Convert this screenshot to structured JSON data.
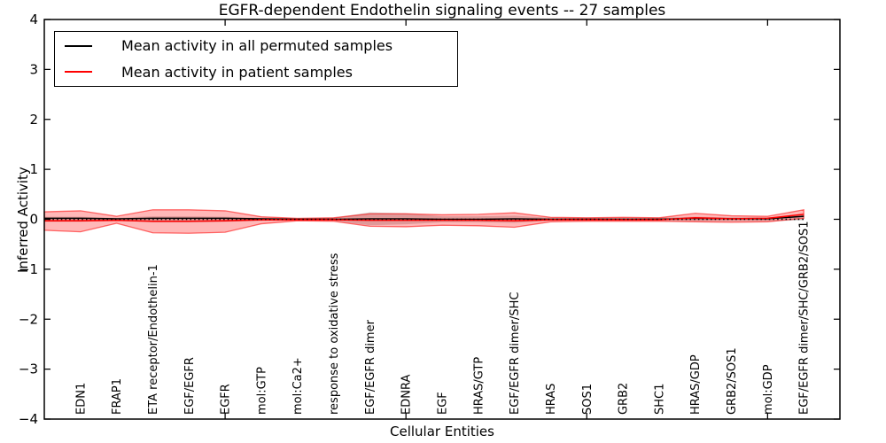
{
  "title": "EGFR-dependent Endothelin signaling events -- 27 samples",
  "axes": {
    "ylabel": "Inferred Activity",
    "xlabel": "Cellular Entities",
    "ylim": [
      -4,
      4
    ],
    "xlim": [
      0,
      22
    ],
    "yticks": [
      {
        "v": 4,
        "label": "4"
      },
      {
        "v": 3,
        "label": "3"
      },
      {
        "v": 2,
        "label": "2"
      },
      {
        "v": 1,
        "label": "1"
      },
      {
        "v": 0,
        "label": "0"
      },
      {
        "v": -1,
        "label": "−1"
      },
      {
        "v": -2,
        "label": "−2"
      },
      {
        "v": -3,
        "label": "−3"
      },
      {
        "v": -4,
        "label": "−4"
      }
    ],
    "xticks_major": [
      5,
      10,
      15,
      20
    ],
    "grid": false
  },
  "legend": {
    "items": [
      {
        "label": "Mean activity in all permuted samples",
        "color": "#000000"
      },
      {
        "label": "Mean activity in patient samples",
        "color": "#ff0000"
      }
    ]
  },
  "chart_data": {
    "type": "line",
    "title": "EGFR-dependent Endothelin signaling events -- 27 samples",
    "xlabel": "Cellular Entities",
    "ylabel": "Inferred Activity",
    "ylim": [
      -4,
      4
    ],
    "xlim": [
      0,
      22
    ],
    "legend_position": "upper left",
    "categories": [
      "EDN1",
      "FRAP1",
      "ETA receptor/Endothelin-1",
      "EGF/EGFR",
      "EGFR",
      "mol:GTP",
      "mol:Ca2+",
      "response to oxidative stress",
      "EGF/EGFR dimer",
      "EDNRA",
      "EGF",
      "HRAS/GTP",
      "EGF/EGFR dimer/SHC",
      "HRAS",
      "SOS1",
      "GRB2",
      "SHC1",
      "HRAS/GDP",
      "GRB2/SOS1",
      "mol:GDP",
      "EGF/EGFR dimer/SHC/GRB2/SOS1"
    ],
    "categories_x": [
      1,
      2,
      3,
      4,
      5,
      6,
      7,
      8,
      9,
      10,
      11,
      12,
      13,
      14,
      15,
      16,
      17,
      18,
      19,
      20,
      21
    ],
    "x": [
      0,
      1,
      2,
      3,
      4,
      5,
      6,
      7,
      8,
      9,
      10,
      11,
      12,
      13,
      14,
      15,
      16,
      17,
      18,
      19,
      20,
      21
    ],
    "series": [
      {
        "name": "Mean activity in all permuted samples",
        "color": "#000000",
        "width": 1.4,
        "style": "solid",
        "values": [
          0.02,
          0.02,
          0.01,
          0.02,
          0.02,
          0.02,
          0.01,
          0,
          0,
          0.01,
          0.01,
          0,
          0,
          0.01,
          0,
          0,
          0,
          0,
          0.02,
          0.01,
          0.01,
          0.06
        ]
      },
      {
        "name": "Mean activity in patient samples",
        "color": "#ff0000",
        "width": 1.6,
        "style": "solid",
        "values": [
          -0.03,
          -0.03,
          -0.02,
          -0.04,
          -0.04,
          -0.03,
          -0.01,
          -0.01,
          -0.01,
          -0.02,
          -0.02,
          -0.02,
          -0.02,
          -0.03,
          -0.01,
          -0.01,
          -0.01,
          -0.01,
          0.03,
          0.01,
          0.02,
          0.1
        ]
      }
    ],
    "bands": [
      {
        "name": "permuted-samples-std-band",
        "color": "#787878",
        "alpha": 0.32,
        "edge_alpha": 0,
        "hi": [
          0.05,
          0.05,
          0.03,
          0.06,
          0.06,
          0.05,
          0.03,
          0.02,
          0.03,
          0.14,
          0.12,
          0.06,
          0.06,
          0.07,
          0.03,
          0.03,
          0.03,
          0.03,
          0.05,
          0.04,
          0.04,
          0.08
        ],
        "lo": [
          -0.05,
          -0.05,
          -0.03,
          -0.06,
          -0.06,
          -0.05,
          -0.03,
          -0.02,
          -0.03,
          -0.12,
          -0.1,
          -0.06,
          -0.06,
          -0.07,
          -0.03,
          -0.03,
          -0.03,
          -0.03,
          -0.04,
          -0.04,
          -0.04,
          -0.02
        ]
      },
      {
        "name": "patient-samples-std-band",
        "color": "#ff0000",
        "alpha": 0.28,
        "edge_alpha": 0.55,
        "hi": [
          0.15,
          0.17,
          0.06,
          0.19,
          0.19,
          0.17,
          0.05,
          0.02,
          0.03,
          0.11,
          0.11,
          0.09,
          0.1,
          0.13,
          0.04,
          0.03,
          0.04,
          0.03,
          0.12,
          0.07,
          0.06,
          0.19
        ],
        "lo": [
          -0.22,
          -0.25,
          -0.08,
          -0.27,
          -0.28,
          -0.26,
          -0.09,
          -0.03,
          -0.04,
          -0.14,
          -0.15,
          -0.12,
          -0.13,
          -0.16,
          -0.05,
          -0.04,
          -0.04,
          -0.04,
          -0.05,
          -0.06,
          -0.05,
          0.02
        ]
      }
    ],
    "zero_line": {
      "value": 0,
      "color": "#000000",
      "style": "dotted"
    }
  }
}
